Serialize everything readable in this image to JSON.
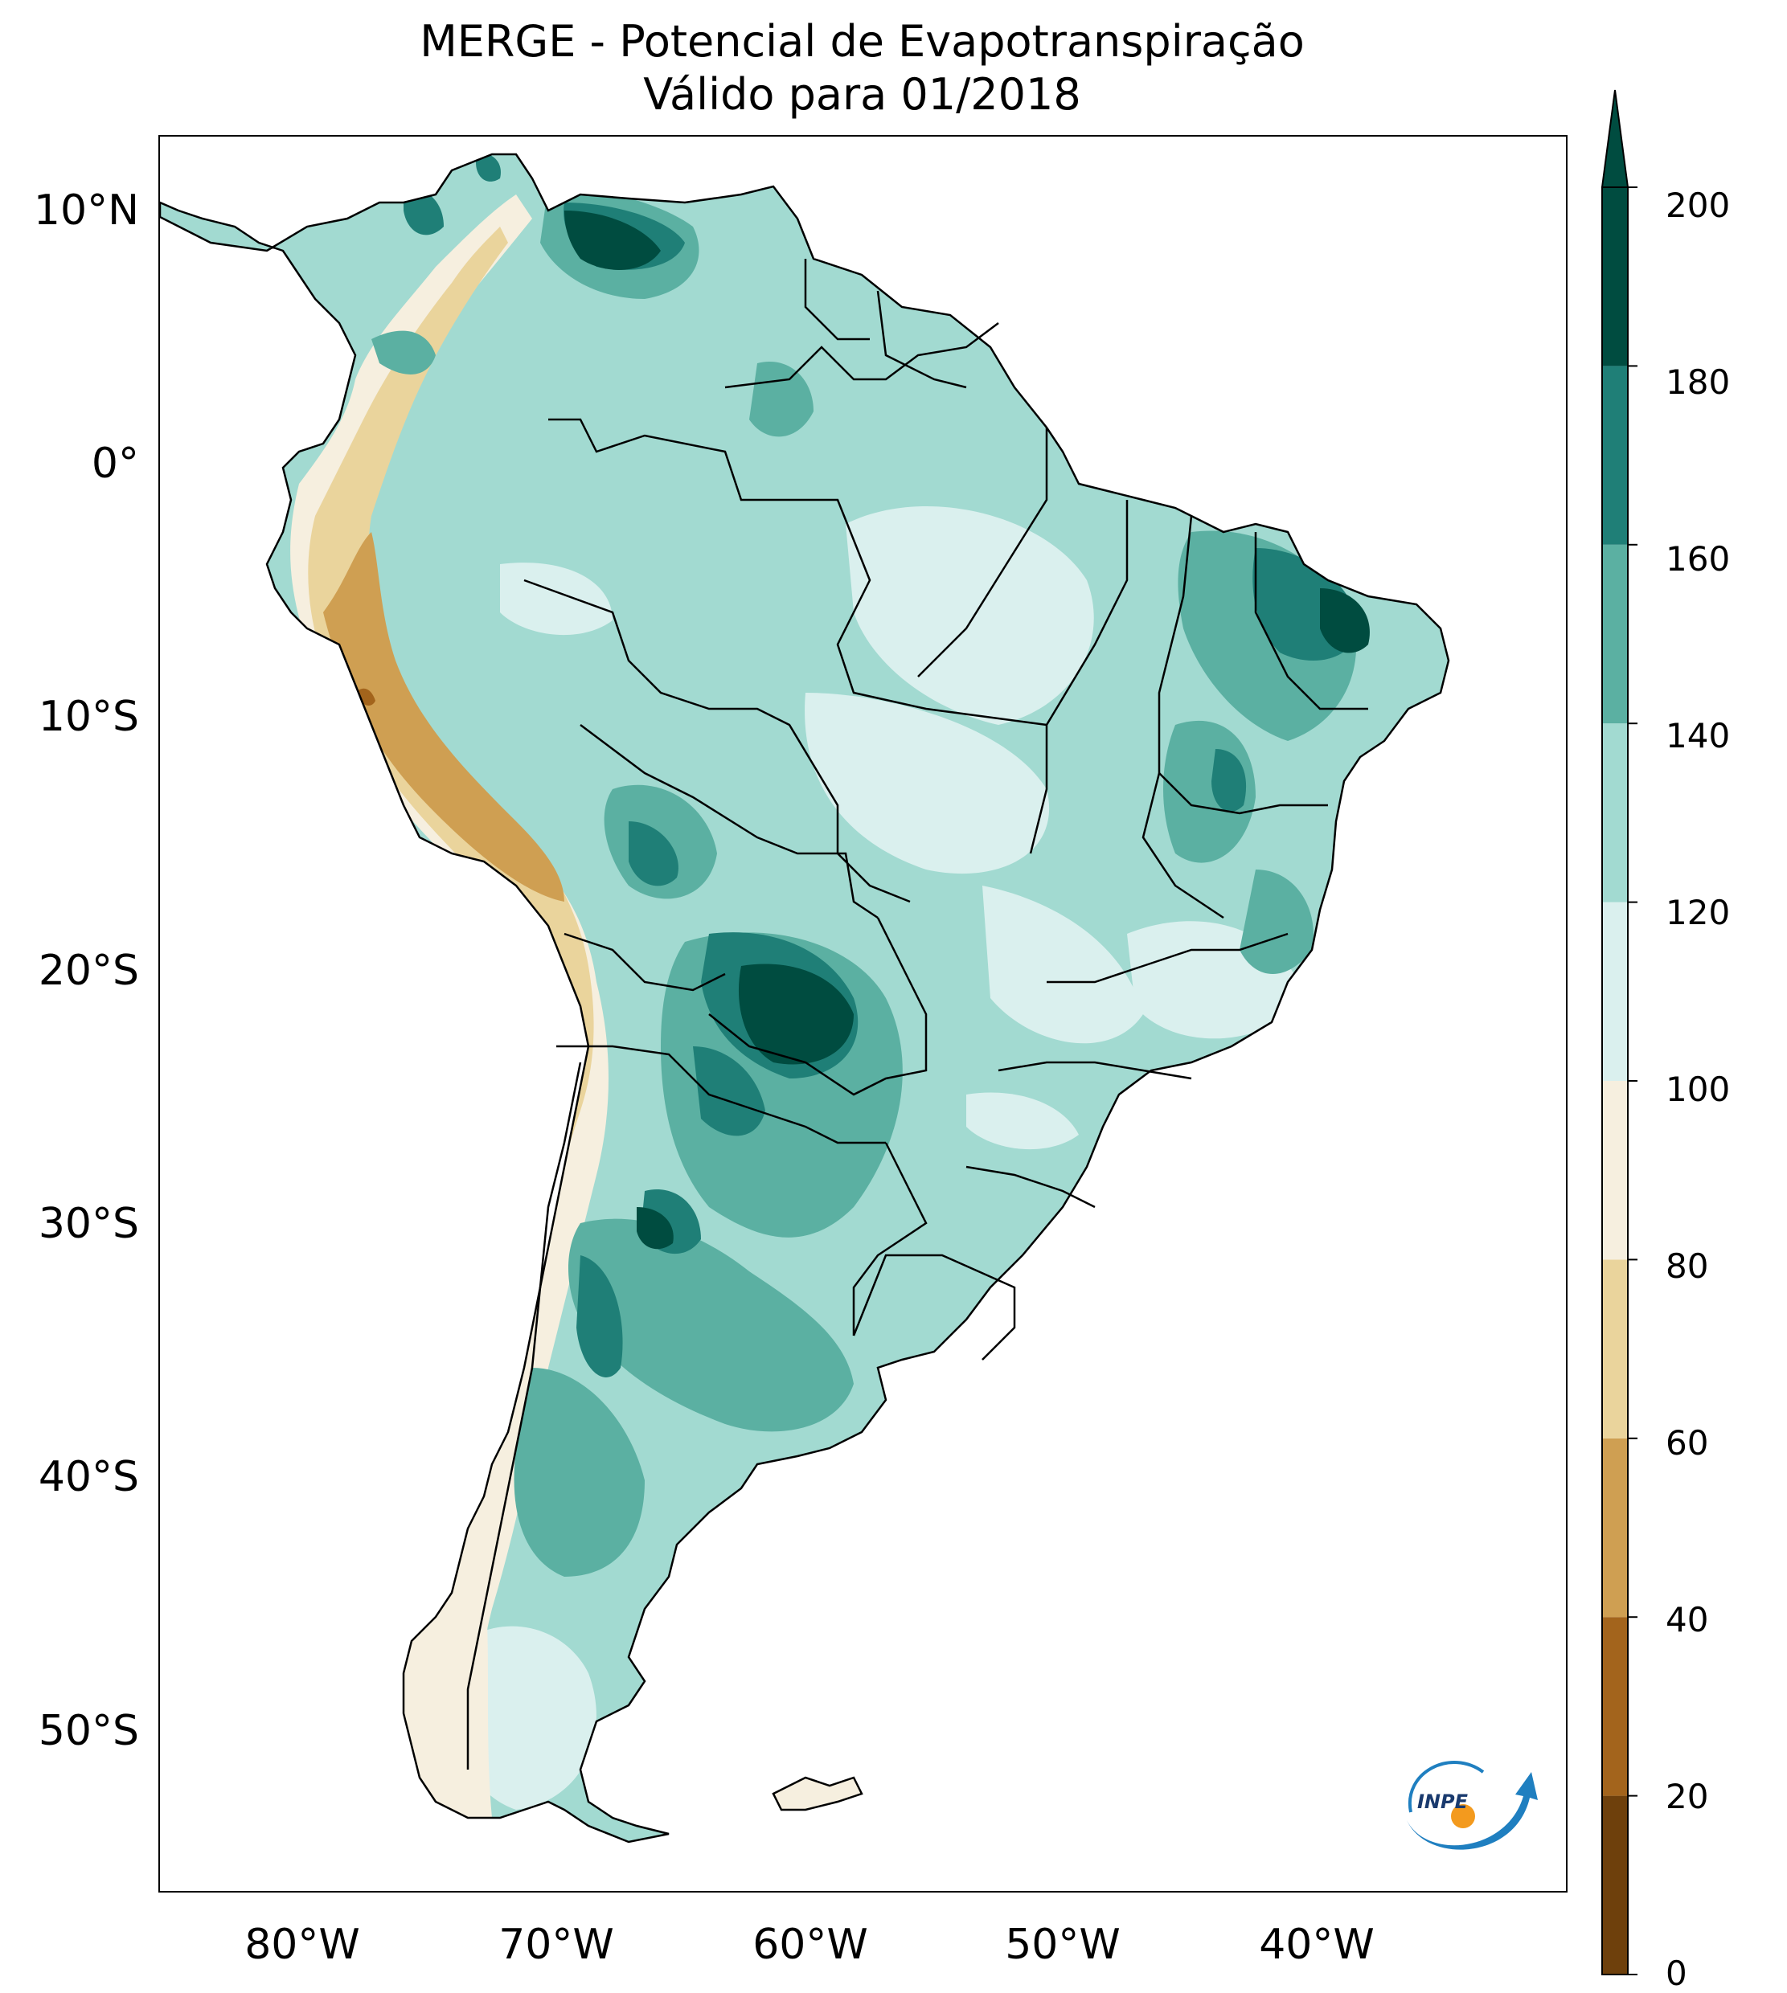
{
  "title": {
    "line1": "MERGE - Potencial de Evapotranspiração",
    "line2": "Válido para 01/2018"
  },
  "axes": {
    "lat_labels": [
      "10°N",
      "0°",
      "10°S",
      "20°S",
      "30°S",
      "40°S",
      "50°S"
    ],
    "lon_labels": [
      "80°W",
      "70°W",
      "60°W",
      "50°W",
      "40°W"
    ]
  },
  "colorbar": {
    "ticks": [
      "0",
      "20",
      "40",
      "60",
      "80",
      "100",
      "120",
      "140",
      "160",
      "180",
      "200"
    ],
    "levels": [
      {
        "min": 0,
        "max": 20,
        "color": "#6e400c"
      },
      {
        "min": 20,
        "max": 40,
        "color": "#a3641c"
      },
      {
        "min": 40,
        "max": 60,
        "color": "#cf9f52"
      },
      {
        "min": 60,
        "max": 80,
        "color": "#ead49c"
      },
      {
        "min": 80,
        "max": 100,
        "color": "#f6efdf"
      },
      {
        "min": 100,
        "max": 120,
        "color": "#daf0ee"
      },
      {
        "min": 120,
        "max": 140,
        "color": "#a2dad1"
      },
      {
        "min": 140,
        "max": 160,
        "color": "#5bb0a2"
      },
      {
        "min": 160,
        "max": 180,
        "color": "#1f7f77"
      },
      {
        "min": 180,
        "max": 200,
        "color": "#004c40"
      }
    ],
    "extend": "max"
  },
  "logo": {
    "text": "INPE"
  }
}
